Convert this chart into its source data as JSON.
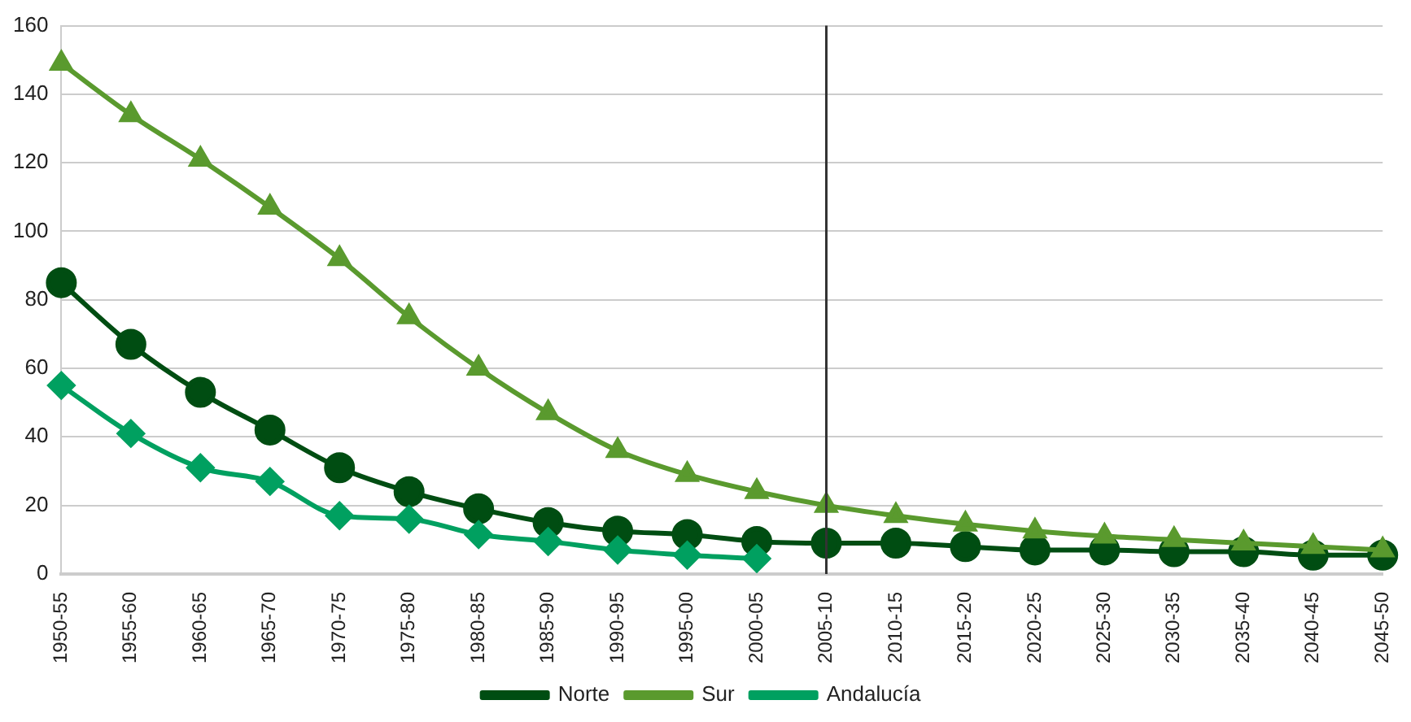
{
  "chart_data": {
    "type": "line",
    "categories": [
      "1950-55",
      "1955-60",
      "1960-65",
      "1965-70",
      "1970-75",
      "1975-80",
      "1980-85",
      "1985-90",
      "1990-95",
      "1995-00",
      "2000-05",
      "2005-10",
      "2010-15",
      "2015-20",
      "2020-25",
      "2025-30",
      "2030-35",
      "2035-40",
      "2040-45",
      "2045-50"
    ],
    "series": [
      {
        "name": "Norte",
        "color": "#004d12",
        "marker": "circle",
        "values": [
          85,
          67,
          53,
          42,
          31,
          24,
          19,
          15,
          12.5,
          11.5,
          9.5,
          9,
          9,
          8,
          7,
          7,
          6.5,
          6.5,
          5.5,
          5.5
        ]
      },
      {
        "name": "Sur",
        "color": "#5a9a2e",
        "marker": "triangle",
        "values": [
          149,
          134,
          121,
          107,
          92,
          75,
          60,
          47,
          36,
          29,
          24,
          20,
          17,
          14.5,
          12.5,
          11,
          10,
          9,
          8,
          7
        ]
      },
      {
        "name": "Andalucía",
        "color": "#00a060",
        "marker": "diamond",
        "values": [
          55,
          41,
          31,
          27,
          17,
          16,
          11.5,
          9.5,
          7,
          5.5,
          4.5,
          null,
          null,
          null,
          null,
          null,
          null,
          null,
          null,
          null
        ]
      }
    ],
    "ylim": [
      0,
      160
    ],
    "yticks": [
      0,
      20,
      40,
      60,
      80,
      100,
      120,
      140,
      160
    ],
    "grid": "y",
    "legend": "bottom",
    "ref_lines": [
      {
        "axis": "x",
        "value": "2005-10",
        "color": "#333333"
      }
    ]
  }
}
